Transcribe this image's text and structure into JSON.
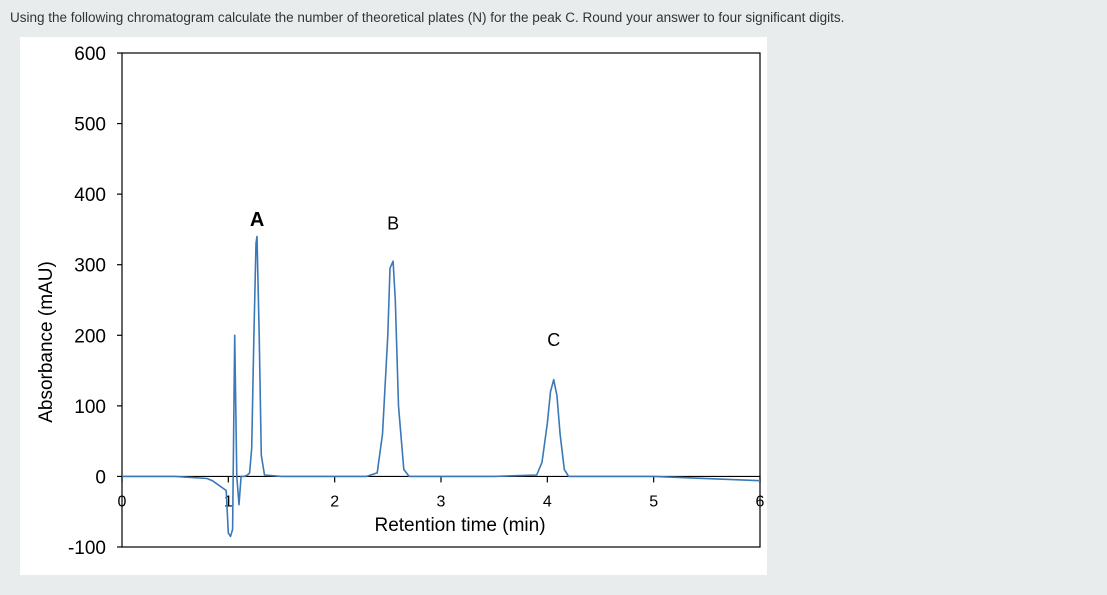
{
  "question": "Using the following chromatogram calculate the number of theoretical plates (N) for the peak C. Round your answer to four significant digits.",
  "chart_data": {
    "type": "line",
    "title": "",
    "xlabel": "Retention time (min)",
    "ylabel": "Absorbance (mAU)",
    "xlim": [
      0,
      6
    ],
    "ylim": [
      -100,
      600
    ],
    "xticks": [
      "0",
      "1",
      "2",
      "3",
      "4",
      "5",
      "6"
    ],
    "yticks": [
      "600",
      "500",
      "400",
      "300",
      "200",
      "100",
      "0",
      "-100"
    ],
    "grid": false,
    "series": [
      {
        "name": "",
        "color": "#3a78b8",
        "x": [
          0,
          0.5,
          0.8,
          0.85,
          0.98,
          1.0,
          1.02,
          1.04,
          1.06,
          1.08,
          1.1,
          1.12,
          1.15,
          1.18,
          1.2,
          1.22,
          1.24,
          1.26,
          1.27,
          1.29,
          1.31,
          1.34,
          1.5,
          2.0,
          2.3,
          2.4,
          2.45,
          2.5,
          2.52,
          2.55,
          2.57,
          2.6,
          2.65,
          2.7,
          2.8,
          3.5,
          3.9,
          3.95,
          4.0,
          4.03,
          4.06,
          4.09,
          4.12,
          4.16,
          4.2,
          4.3,
          5.0,
          6.0
        ],
        "y": [
          0,
          0,
          -3,
          -6,
          -20,
          -80,
          -85,
          -75,
          200,
          0,
          -40,
          0,
          0,
          2,
          5,
          40,
          200,
          330,
          340,
          200,
          30,
          2,
          0,
          0,
          0,
          5,
          60,
          200,
          295,
          305,
          250,
          100,
          10,
          0,
          0,
          0,
          2,
          20,
          75,
          120,
          137,
          115,
          60,
          10,
          0,
          0,
          0,
          -6
        ]
      }
    ],
    "annotations": [
      {
        "text": "A",
        "x": 1.27,
        "y": 355
      },
      {
        "text": "B",
        "x": 2.55,
        "y": 350
      },
      {
        "text": "C",
        "x": 4.06,
        "y": 185
      }
    ]
  }
}
